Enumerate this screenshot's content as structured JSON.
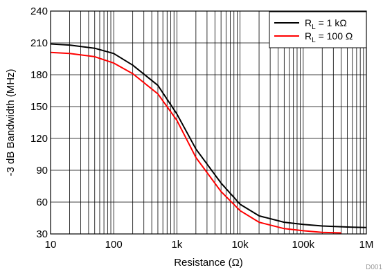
{
  "chart_data": {
    "type": "line",
    "xlabel": "Resistance (Ω)",
    "ylabel": "-3 dB Bandwidth (MHz)",
    "xscale": "log",
    "xlim": [
      10,
      1000000
    ],
    "ylim": [
      30,
      240
    ],
    "xticks": [
      {
        "value": 10,
        "label": "10"
      },
      {
        "value": 100,
        "label": "100"
      },
      {
        "value": 1000,
        "label": "1k"
      },
      {
        "value": 10000,
        "label": "10k"
      },
      {
        "value": 100000,
        "label": "100k"
      },
      {
        "value": 1000000,
        "label": "1M"
      }
    ],
    "yticks": [
      30,
      60,
      90,
      120,
      150,
      180,
      210,
      240
    ],
    "grid": true,
    "legend_position": "top-right",
    "series": [
      {
        "name": "R_L = 1 kΩ",
        "label_main": "R",
        "label_sub": "L",
        "label_rest": " = 1 kΩ",
        "color": "#000000",
        "x": [
          10,
          20,
          50,
          100,
          200,
          500,
          1000,
          2000,
          5000,
          10000,
          20000,
          50000,
          100000,
          200000,
          500000,
          1000000
        ],
        "y": [
          209,
          208,
          205,
          200,
          189,
          170,
          143,
          110,
          78,
          58,
          47,
          41,
          39,
          37.5,
          36.5,
          36
        ]
      },
      {
        "name": "R_L = 100 Ω",
        "label_main": "R",
        "label_sub": "L",
        "label_rest": " = 100 Ω",
        "color": "#ff0000",
        "x": [
          10,
          20,
          50,
          100,
          200,
          500,
          1000,
          2000,
          5000,
          10000,
          20000,
          50000,
          100000,
          200000,
          400000
        ],
        "y": [
          201,
          200,
          197,
          191,
          181,
          162,
          137,
          102,
          70,
          52,
          41,
          35,
          33,
          31.5,
          31
        ]
      }
    ],
    "watermark": "D001"
  }
}
